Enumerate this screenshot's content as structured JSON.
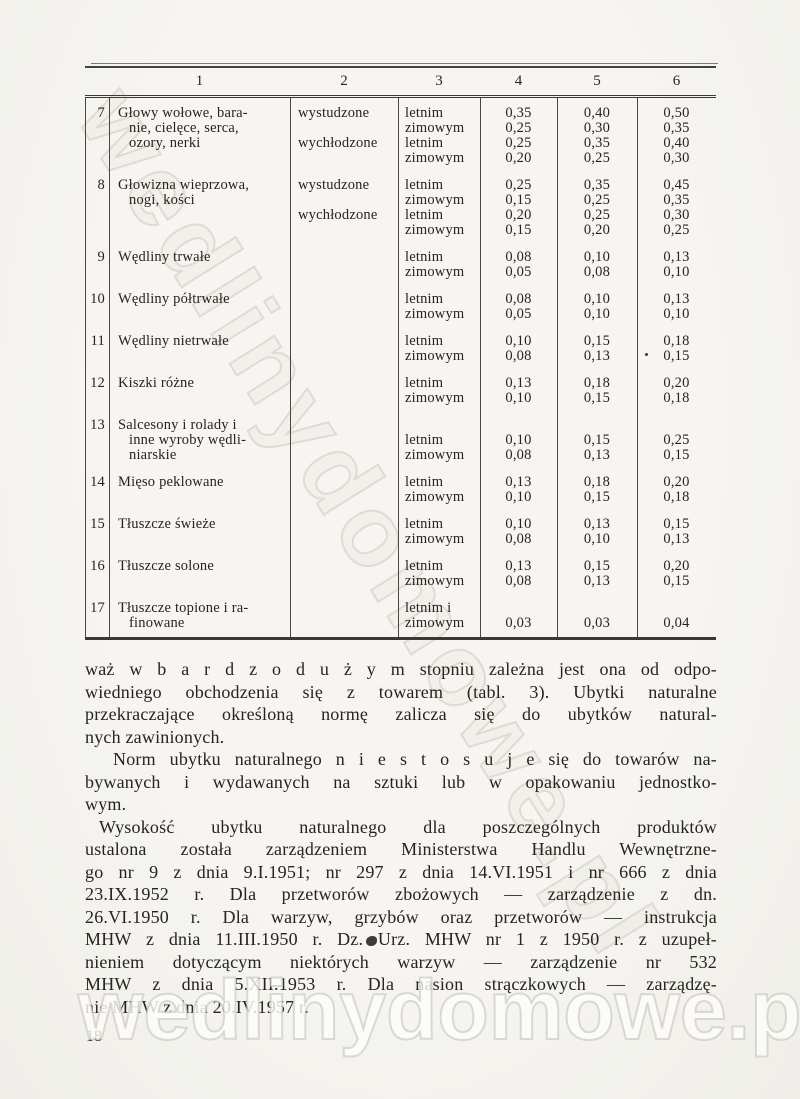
{
  "page_number": "18",
  "watermarks": {
    "diagonal_text": "wedlinydomowe.pl",
    "bottom_text": "wedlinydomowe.pl"
  },
  "colors": {
    "paper": "#f4f3ef",
    "ink": "#26241f",
    "rule": "#45423b",
    "watermark": "#d6d2c9"
  },
  "table": {
    "header": [
      "",
      "1",
      "2",
      "3",
      "4",
      "5",
      "6"
    ],
    "rows": [
      {
        "num": "7",
        "product": [
          "Głowy wołowe, bara-",
          "nie, cielęce, serca,",
          "ozory, nerki",
          ""
        ],
        "state": [
          "wystudzone",
          "",
          "wychłodzone",
          ""
        ],
        "season": [
          "letnim",
          "zimowym",
          "letnim",
          "zimowym"
        ],
        "c4": [
          "0,35",
          "0,25",
          "0,25",
          "0,20"
        ],
        "c5": [
          "0,40",
          "0,30",
          "0,35",
          "0,25"
        ],
        "c6": [
          "0,50",
          "0,35",
          "0,40",
          "0,30"
        ]
      },
      {
        "num": "8",
        "product": [
          "Głowizna wieprzowa,",
          "nogi, kości",
          "",
          ""
        ],
        "state": [
          "wystudzone",
          "",
          "wychłodzone",
          ""
        ],
        "season": [
          "letnim",
          "zimowym",
          "letnim",
          "zimowym"
        ],
        "c4": [
          "0,25",
          "0,15",
          "0,20",
          "0,15"
        ],
        "c5": [
          "0,35",
          "0,25",
          "0,25",
          "0,20"
        ],
        "c6": [
          "0,45",
          "0,35",
          "0,30",
          "0,25"
        ]
      },
      {
        "num": "9",
        "product": [
          "Wędliny trwałe",
          ""
        ],
        "state": [
          "",
          ""
        ],
        "season": [
          "letnim",
          "zimowym"
        ],
        "c4": [
          "0,08",
          "0,05"
        ],
        "c5": [
          "0,10",
          "0,08"
        ],
        "c6": [
          "0,13",
          "0,10"
        ]
      },
      {
        "num": "10",
        "product": [
          "Wędliny półtrwałe",
          ""
        ],
        "state": [
          "",
          ""
        ],
        "season": [
          "letnim",
          "zimowym"
        ],
        "c4": [
          "0,08",
          "0,05"
        ],
        "c5": [
          "0,10",
          "0,10"
        ],
        "c6": [
          "0,13",
          "0,10"
        ]
      },
      {
        "num": "11",
        "product": [
          "Wędliny nietrwałe",
          ""
        ],
        "state": [
          "",
          ""
        ],
        "season": [
          "letnim",
          "zimowym"
        ],
        "c4": [
          "0,10",
          "0,08"
        ],
        "c5": [
          "0,15",
          "0,13"
        ],
        "c6": [
          "0,18",
          "0,15"
        ]
      },
      {
        "num": "12",
        "product": [
          "Kiszki różne",
          ""
        ],
        "state": [
          "",
          ""
        ],
        "season": [
          "letnim",
          "zimowym"
        ],
        "c4": [
          "0,13",
          "0,10"
        ],
        "c5": [
          "0,18",
          "0,15"
        ],
        "c6": [
          "0,20",
          "0,18"
        ]
      },
      {
        "num": "13",
        "product": [
          "Salcesony i rolady i",
          "inne wyroby wędli-",
          "niarskie"
        ],
        "state": [
          "",
          "",
          ""
        ],
        "season": [
          "",
          "letnim",
          "zimowym"
        ],
        "c4": [
          "",
          "0,10",
          "0,08"
        ],
        "c5": [
          "",
          "0,15",
          "0,13"
        ],
        "c6": [
          "",
          "0,25",
          "0,15"
        ]
      },
      {
        "num": "14",
        "product": [
          "Mięso peklowane",
          ""
        ],
        "state": [
          "",
          ""
        ],
        "season": [
          "letnim",
          "zimowym"
        ],
        "c4": [
          "0,13",
          "0,10"
        ],
        "c5": [
          "0,18",
          "0,15"
        ],
        "c6": [
          "0,20",
          "0,18"
        ]
      },
      {
        "num": "15",
        "product": [
          "Tłuszcze świeże",
          ""
        ],
        "state": [
          "",
          ""
        ],
        "season": [
          "letnim",
          "zimowym"
        ],
        "c4": [
          "0,10",
          "0,08"
        ],
        "c5": [
          "0,13",
          "0,10"
        ],
        "c6": [
          "0,15",
          "0,13"
        ]
      },
      {
        "num": "16",
        "product": [
          "Tłuszcze solone",
          ""
        ],
        "state": [
          "",
          ""
        ],
        "season": [
          "letnim",
          "zimowym"
        ],
        "c4": [
          "0,13",
          "0,08"
        ],
        "c5": [
          "0,15",
          "0,13"
        ],
        "c6": [
          "0,20",
          "0,15"
        ]
      },
      {
        "num": "17",
        "product": [
          "Tłuszcze topione i ra-",
          "finowane"
        ],
        "state": [
          "",
          ""
        ],
        "season": [
          "letnim i",
          "zimowym"
        ],
        "c4": [
          "",
          "0,03"
        ],
        "c5": [
          "",
          "0,03"
        ],
        "c6": [
          "",
          "0,04"
        ]
      }
    ]
  },
  "paragraphs": [
    {
      "indent": false,
      "lines": [
        "waż w b a r d z o d u ż y m stopniu zależna jest ona od odpo-",
        "wiedniego obchodzenia się z towarem (tabl. 3). Ubytki naturalne",
        "przekraczające określoną normę zalicza się do ubytków natural-",
        "nych zawinionych."
      ]
    },
    {
      "indent": true,
      "lines": [
        "Norm ubytku naturalnego n i e s t o s u j e się do towarów na-",
        "bywanych i wydawanych na sztuki lub w opakowaniu jednostko-",
        "wym."
      ]
    },
    {
      "indent": true,
      "lines": [
        "Wysokość ubytku naturalnego dla poszczególnych produktów",
        "ustalona została zarządzeniem Ministerstwa Handlu Wewnętrzne-",
        "go nr 9 z dnia 9.I.1951; nr 297 z dnia 14.VI.1951 i nr 666 z dnia",
        "23.IX.1952 r. Dla przetworów zbożowych — zarządzenie z dn.",
        "26.VI.1950 r. Dla warzyw, grzybów oraz przetworów — instrukcja",
        "MHW z dnia 11.III.1950 r. Dz. Urz. MHW nr 1 z 1950 r. z uzupeł-",
        "nieniem dotyczącym niektórych warzyw — zarządzenie nr 532",
        "MHW z dnia 5.XII.1953 r. Dla nasion strączkowych — zarządzę-",
        "nie MHW z dnia 20.IV.1957 r."
      ]
    }
  ]
}
